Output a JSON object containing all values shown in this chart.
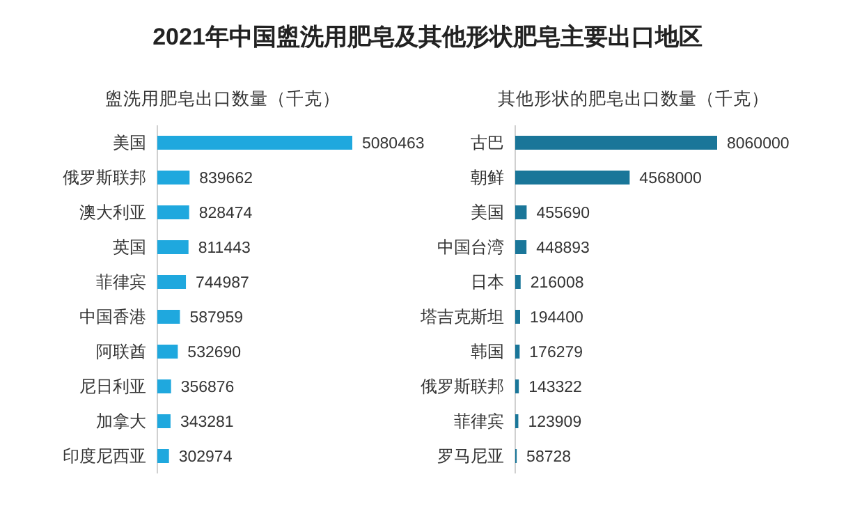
{
  "chart_data": [
    {
      "type": "bar",
      "orientation": "horizontal",
      "title": "2021年中国盥洗用肥皂及其他形状肥皂主要出口地区",
      "subtitle": "盥洗用肥皂出口数量（千克）",
      "categories": [
        "美国",
        "俄罗斯联邦",
        "澳大利亚",
        "英国",
        "菲律宾",
        "中国香港",
        "阿联酋",
        "尼日利亚",
        "加拿大",
        "印度尼西亚"
      ],
      "values": [
        5080463,
        839662,
        828474,
        811443,
        744987,
        587959,
        532690,
        356876,
        343281,
        302974
      ],
      "color": "#1fa8de",
      "data_labels": true
    },
    {
      "type": "bar",
      "orientation": "horizontal",
      "subtitle": "其他形状的肥皂出口数量（千克）",
      "categories": [
        "古巴",
        "朝鲜",
        "美国",
        "中国台湾",
        "日本",
        "塔吉克斯坦",
        "韩国",
        "俄罗斯联邦",
        "菲律宾",
        "罗马尼亚"
      ],
      "values": [
        8060000,
        4568000,
        455690,
        448893,
        216008,
        194400,
        176279,
        143322,
        123909,
        58728
      ],
      "color": "#1a7699",
      "data_labels": true
    }
  ]
}
